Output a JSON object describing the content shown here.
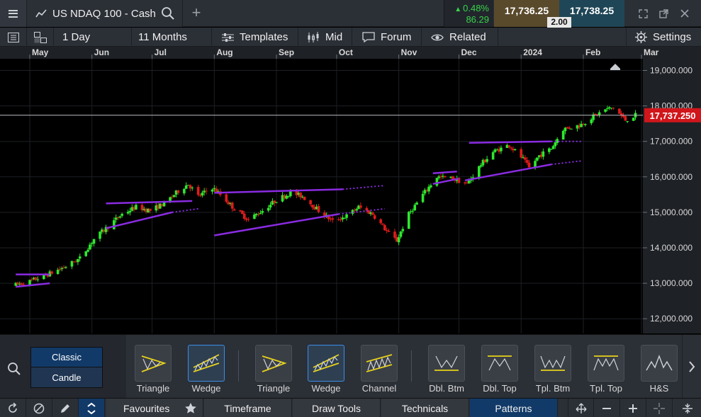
{
  "titlebar": {
    "instrument": "US NDAQ 100 - Cash",
    "change_pct": "0.48%",
    "change_abs": "86.29",
    "sell_price": "17,736.25",
    "buy_price": "17,738.25",
    "spread": "2.00"
  },
  "toolbar": {
    "interval": "1 Day",
    "range": "11 Months",
    "templates": "Templates",
    "price_type": "Mid",
    "forum": "Forum",
    "related": "Related",
    "settings": "Settings"
  },
  "chart_data": {
    "type": "candlestick",
    "instrument": "US NDAQ 100 - Cash",
    "x_tick_labels": [
      "May",
      "Jun",
      "Jul",
      "Aug",
      "Sep",
      "Oct",
      "Nov",
      "Dec",
      "2024",
      "Feb",
      "Mar"
    ],
    "y_tick_labels": [
      "19,000.000",
      "18,000.000",
      "17,000.000",
      "16,000.000",
      "15,000.000",
      "14,000.000",
      "13,000.000",
      "12,000.000"
    ],
    "y_ticks": [
      19000,
      18000,
      17000,
      16000,
      15000,
      14000,
      13000,
      12000
    ],
    "ylim": [
      11800,
      19400
    ],
    "current_price": 17737.25,
    "current_price_label": "17,737.250",
    "up_color": "#2ee82e",
    "down_color": "#e01b1b",
    "pattern_line_color": "#8a2be2",
    "price_path": [
      [
        "Apr 24",
        12950
      ],
      [
        "May 1",
        13050
      ],
      [
        "May 10",
        13250
      ],
      [
        "May 18",
        13450
      ],
      [
        "May 26",
        13700
      ],
      [
        "Jun 2",
        14250
      ],
      [
        "Jun 9",
        14600
      ],
      [
        "Jun 16",
        14950
      ],
      [
        "Jun 23",
        15150
      ],
      [
        "Jun 30",
        15050
      ],
      [
        "Jul 7",
        15250
      ],
      [
        "Jul 14",
        15600
      ],
      [
        "Jul 19",
        15800
      ],
      [
        "Jul 24",
        15450
      ],
      [
        "Jul 31",
        15700
      ],
      [
        "Aug 4",
        15500
      ],
      [
        "Aug 11",
        15100
      ],
      [
        "Aug 18",
        14800
      ],
      [
        "Aug 25",
        15050
      ],
      [
        "Sep 1",
        15350
      ],
      [
        "Sep 8",
        15550
      ],
      [
        "Sep 14",
        15450
      ],
      [
        "Sep 22",
        15050
      ],
      [
        "Sep 29",
        14750
      ],
      [
        "Oct 6",
        14900
      ],
      [
        "Oct 12",
        15150
      ],
      [
        "Oct 19",
        14950
      ],
      [
        "Oct 27",
        14400
      ],
      [
        "Oct 31",
        14200
      ],
      [
        "Nov 6",
        14950
      ],
      [
        "Nov 13",
        15500
      ],
      [
        "Nov 20",
        16000
      ],
      [
        "Nov 28",
        15950
      ],
      [
        "Dec 5",
        15800
      ],
      [
        "Dec 12",
        16350
      ],
      [
        "Dec 18",
        16700
      ],
      [
        "Dec 26",
        16900
      ],
      [
        "Jan 2",
        16500
      ],
      [
        "Jan 5",
        16250
      ],
      [
        "Jan 10",
        16600
      ],
      [
        "Jan 16",
        16800
      ],
      [
        "Jan 22",
        17350
      ],
      [
        "Jan 30",
        17450
      ],
      [
        "Feb 6",
        17700
      ],
      [
        "Feb 12",
        17900
      ],
      [
        "Feb 16",
        17950
      ],
      [
        "Feb 22",
        17600
      ],
      [
        "Feb 27",
        17737
      ]
    ],
    "pattern_lines": [
      {
        "from": [
          "Apr 24",
          13250
        ],
        "to": [
          "May 11",
          13250
        ],
        "projection": false
      },
      {
        "from": [
          "Apr 24",
          12900
        ],
        "to": [
          "May 11",
          13000
        ],
        "projection": false
      },
      {
        "from": [
          "Jun 8",
          15250
        ],
        "to": [
          "Jul 21",
          15320
        ],
        "projection": false
      },
      {
        "from": [
          "Jun 8",
          14550
        ],
        "to": [
          "Jul 11",
          15000
        ],
        "projection": false
      },
      {
        "from": [
          "Jul 11",
          15000
        ],
        "to": [
          "Jul 24",
          15100
        ],
        "projection": true
      },
      {
        "from": [
          "Aug 1",
          15550
        ],
        "to": [
          "Oct 4",
          15650
        ],
        "projection": false
      },
      {
        "from": [
          "Oct 4",
          15650
        ],
        "to": [
          "Oct 24",
          15750
        ],
        "projection": true
      },
      {
        "from": [
          "Aug 1",
          14350
        ],
        "to": [
          "Oct 2",
          14950
        ],
        "projection": false
      },
      {
        "from": [
          "Oct 2",
          14950
        ],
        "to": [
          "Oct 25",
          15100
        ],
        "projection": true
      },
      {
        "from": [
          "Nov 18",
          16100
        ],
        "to": [
          "Nov 30",
          16150
        ],
        "projection": false
      },
      {
        "from": [
          "Nov 18",
          15800
        ],
        "to": [
          "Dec 1",
          15950
        ],
        "projection": false
      },
      {
        "from": [
          "Dec 6",
          16960
        ],
        "to": [
          "Jan 16",
          17000
        ],
        "projection": false
      },
      {
        "from": [
          "Jan 16",
          17000
        ],
        "to": [
          "Jan 31",
          17000
        ],
        "projection": true
      },
      {
        "from": [
          "Dec 4",
          15900
        ],
        "to": [
          "Jan 16",
          16350
        ],
        "projection": false
      },
      {
        "from": [
          "Jan 16",
          16350
        ],
        "to": [
          "Jan 31",
          16450
        ],
        "projection": true
      }
    ]
  },
  "patterns_panel": {
    "style_options": [
      "Classic",
      "Candle"
    ],
    "selected_style": "Classic",
    "items": [
      {
        "label": "Triangle",
        "icon": "triangle-pattern-icon",
        "selected": false
      },
      {
        "label": "Wedge",
        "icon": "wedge-pattern-icon",
        "selected": true
      },
      {
        "label": "Triangle",
        "icon": "triangle-pattern-icon",
        "selected": false
      },
      {
        "label": "Wedge",
        "icon": "wedge-pattern-icon",
        "selected": true
      },
      {
        "label": "Channel",
        "icon": "channel-pattern-icon",
        "selected": false
      },
      {
        "label": "Dbl. Btm",
        "icon": "double-bottom-icon",
        "selected": false
      },
      {
        "label": "Dbl. Top",
        "icon": "double-top-icon",
        "selected": false
      },
      {
        "label": "Tpl. Btm",
        "icon": "triple-bottom-icon",
        "selected": false
      },
      {
        "label": "Tpl. Top",
        "icon": "triple-top-icon",
        "selected": false
      },
      {
        "label": "H&S",
        "icon": "head-and-shoulders-icon",
        "selected": false
      }
    ]
  },
  "bottombar": {
    "tabs": [
      "Favourites",
      "Timeframe",
      "Draw Tools",
      "Technicals",
      "Patterns"
    ],
    "active_tab": "Patterns"
  }
}
